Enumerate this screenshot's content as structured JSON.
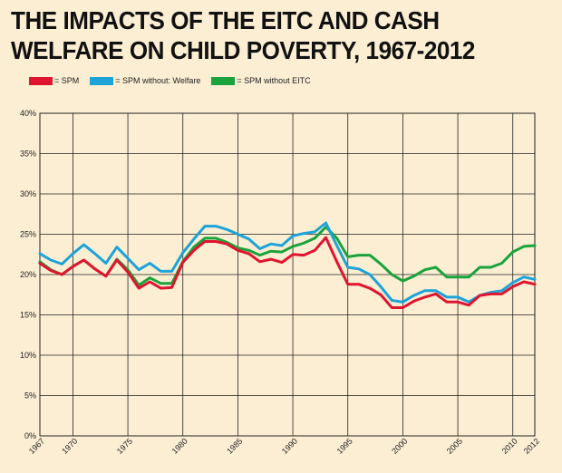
{
  "chart_data": {
    "type": "line",
    "title": "THE IMPACTS OF THE EITC AND CASH WELFARE ON CHILD POVERTY, 1967-2012",
    "xlabel": "",
    "ylabel": "",
    "xlim": [
      1967,
      2012
    ],
    "ylim": [
      0,
      40
    ],
    "xticks": [
      1967,
      1970,
      1975,
      1980,
      1985,
      1990,
      1995,
      2000,
      2005,
      2010,
      2012
    ],
    "yticks": [
      0,
      5,
      10,
      15,
      20,
      25,
      30,
      35,
      40
    ],
    "ytick_labels": [
      "0%",
      "5%",
      "10%",
      "15%",
      "20%",
      "25%",
      "30%",
      "35%",
      "40%"
    ],
    "vertical_gridlines": [
      1970,
      1975,
      1980,
      1985,
      1990,
      1995,
      2000,
      2005,
      2010
    ],
    "legend_position": "top-left",
    "series": [
      {
        "name": "= SPM",
        "color": "#e0142e",
        "points": [
          [
            1967,
            21.4
          ],
          [
            1968,
            20.5
          ],
          [
            1969,
            20.0
          ],
          [
            1970,
            21.0
          ],
          [
            1971,
            21.8
          ],
          [
            1972,
            20.7
          ],
          [
            1973,
            19.8
          ],
          [
            1974,
            21.8
          ],
          [
            1975,
            20.3
          ],
          [
            1976,
            18.3
          ],
          [
            1977,
            19.1
          ],
          [
            1978,
            18.3
          ],
          [
            1979,
            18.4
          ],
          [
            1980,
            21.5
          ],
          [
            1981,
            23.0
          ],
          [
            1982,
            24.1
          ],
          [
            1983,
            24.1
          ],
          [
            1984,
            23.8
          ],
          [
            1985,
            23.0
          ],
          [
            1986,
            22.6
          ],
          [
            1987,
            21.6
          ],
          [
            1988,
            21.9
          ],
          [
            1989,
            21.5
          ],
          [
            1990,
            22.5
          ],
          [
            1991,
            22.4
          ],
          [
            1992,
            23.0
          ],
          [
            1993,
            24.6
          ],
          [
            1994,
            21.6
          ],
          [
            1995,
            18.8
          ],
          [
            1996,
            18.8
          ],
          [
            1997,
            18.3
          ],
          [
            1998,
            17.5
          ],
          [
            1999,
            15.9
          ],
          [
            2000,
            15.9
          ],
          [
            2001,
            16.7
          ],
          [
            2002,
            17.2
          ],
          [
            2003,
            17.6
          ],
          [
            2004,
            16.6
          ],
          [
            2005,
            16.6
          ],
          [
            2006,
            16.2
          ],
          [
            2007,
            17.4
          ],
          [
            2008,
            17.6
          ],
          [
            2009,
            17.6
          ],
          [
            2010,
            18.5
          ],
          [
            2011,
            19.1
          ],
          [
            2012,
            18.8
          ]
        ]
      },
      {
        "name": "= SPM without: Welfare",
        "color": "#1ea3d8",
        "points": [
          [
            1967,
            22.6
          ],
          [
            1968,
            21.8
          ],
          [
            1969,
            21.3
          ],
          [
            1970,
            22.6
          ],
          [
            1971,
            23.7
          ],
          [
            1972,
            22.6
          ],
          [
            1973,
            21.4
          ],
          [
            1974,
            23.4
          ],
          [
            1975,
            22.0
          ],
          [
            1976,
            20.6
          ],
          [
            1977,
            21.4
          ],
          [
            1978,
            20.4
          ],
          [
            1979,
            20.4
          ],
          [
            1980,
            22.7
          ],
          [
            1981,
            24.4
          ],
          [
            1982,
            26.0
          ],
          [
            1983,
            26.0
          ],
          [
            1984,
            25.6
          ],
          [
            1985,
            25.0
          ],
          [
            1986,
            24.4
          ],
          [
            1987,
            23.2
          ],
          [
            1988,
            23.8
          ],
          [
            1989,
            23.6
          ],
          [
            1990,
            24.8
          ],
          [
            1991,
            25.1
          ],
          [
            1992,
            25.3
          ],
          [
            1993,
            26.4
          ],
          [
            1994,
            23.6
          ],
          [
            1995,
            20.9
          ],
          [
            1996,
            20.7
          ],
          [
            1997,
            20.0
          ],
          [
            1998,
            18.5
          ],
          [
            1999,
            16.8
          ],
          [
            2000,
            16.6
          ],
          [
            2001,
            17.4
          ],
          [
            2002,
            18.0
          ],
          [
            2003,
            18.0
          ],
          [
            2004,
            17.2
          ],
          [
            2005,
            17.2
          ],
          [
            2006,
            16.6
          ],
          [
            2007,
            17.4
          ],
          [
            2008,
            17.8
          ],
          [
            2009,
            18.0
          ],
          [
            2010,
            19.0
          ],
          [
            2011,
            19.7
          ],
          [
            2012,
            19.4
          ]
        ]
      },
      {
        "name": "= SPM without EITC",
        "color": "#1aa33c",
        "points": [
          [
            1967,
            21.6
          ],
          [
            1968,
            20.6
          ],
          [
            1969,
            20.0
          ],
          [
            1970,
            21.0
          ],
          [
            1971,
            21.8
          ],
          [
            1972,
            20.7
          ],
          [
            1973,
            19.8
          ],
          [
            1974,
            21.9
          ],
          [
            1975,
            20.6
          ],
          [
            1976,
            18.7
          ],
          [
            1977,
            19.6
          ],
          [
            1978,
            18.9
          ],
          [
            1979,
            18.9
          ],
          [
            1980,
            21.6
          ],
          [
            1981,
            23.4
          ],
          [
            1982,
            24.5
          ],
          [
            1983,
            24.5
          ],
          [
            1984,
            24.0
          ],
          [
            1985,
            23.3
          ],
          [
            1986,
            23.0
          ],
          [
            1987,
            22.4
          ],
          [
            1988,
            22.9
          ],
          [
            1989,
            22.8
          ],
          [
            1990,
            23.5
          ],
          [
            1991,
            23.9
          ],
          [
            1992,
            24.5
          ],
          [
            1993,
            25.9
          ],
          [
            1994,
            24.5
          ],
          [
            1995,
            22.2
          ],
          [
            1996,
            22.4
          ],
          [
            1997,
            22.4
          ],
          [
            1998,
            21.3
          ],
          [
            1999,
            20.0
          ],
          [
            2000,
            19.2
          ],
          [
            2001,
            19.8
          ],
          [
            2002,
            20.6
          ],
          [
            2003,
            20.9
          ],
          [
            2004,
            19.7
          ],
          [
            2005,
            19.7
          ],
          [
            2006,
            19.7
          ],
          [
            2007,
            20.9
          ],
          [
            2008,
            20.9
          ],
          [
            2009,
            21.4
          ],
          [
            2010,
            22.8
          ],
          [
            2011,
            23.5
          ],
          [
            2012,
            23.6
          ]
        ]
      }
    ]
  }
}
